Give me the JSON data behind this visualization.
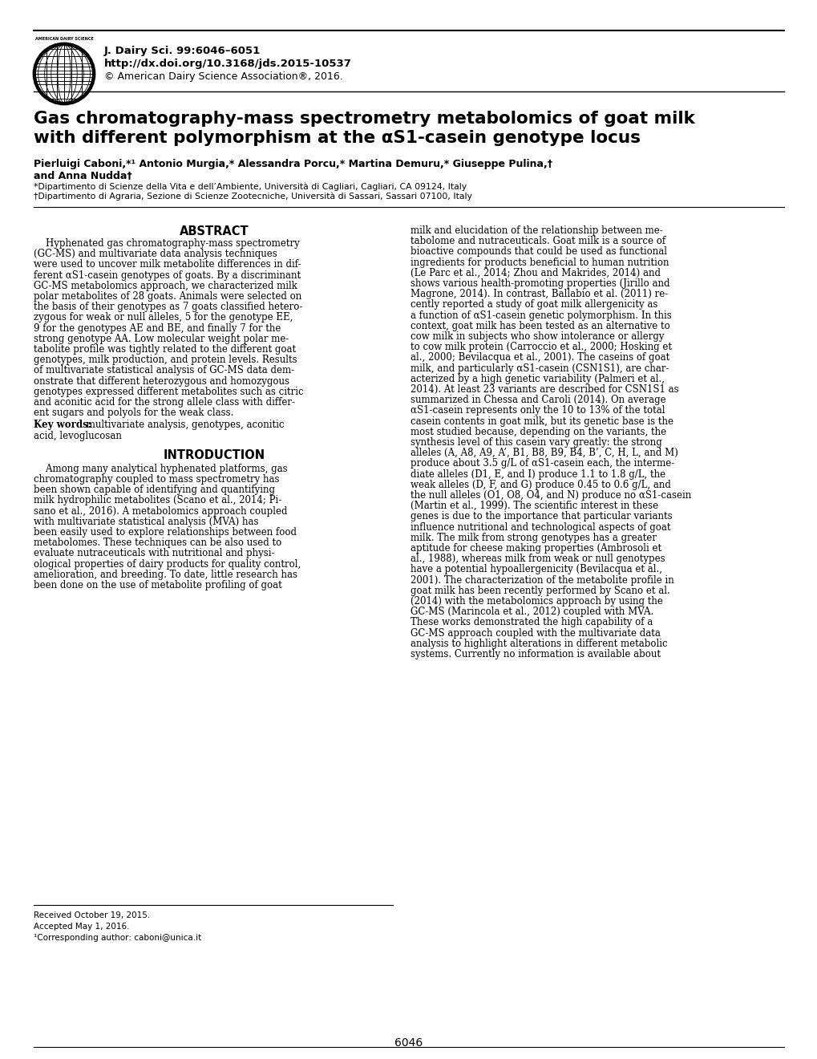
{
  "background_color": "#ffffff",
  "header_journal": "J. Dairy Sci. 99:6046–6051",
  "header_doi": "http://dx.doi.org/10.3168/jds.2015-10537",
  "header_copyright": "© American Dairy Science Association®, 2016.",
  "title_line1": "Gas chromatography-mass spectrometry metabolomics of goat milk",
  "title_line2_part1": "with different polymorphism at the α",
  "title_line2_sub": "S1",
  "title_line2_part2": "-casein genotype locus",
  "authors_line1": "Pierluigi Caboni,*¹ Antonio Murgia,* Alessandra Porcu,* Martina Demuru,* Giuseppe Pulina,†",
  "authors_line2": "and Anna Nudda†",
  "affil1": "*Dipartimento di Scienze della Vita e dell’Ambiente, Università di Cagliari, Cagliari, CA 09124, Italy",
  "affil2": "†Dipartimento di Agraria, Sezione di Scienze Zootecniche, Università di Sassari, Sassari 07100, Italy",
  "abstract_title": "ABSTRACT",
  "intro_title": "INTRODUCTION",
  "footer_received": "Received October 19, 2015.",
  "footer_accepted": "Accepted May 1, 2016.",
  "footer_contact": "¹Corresponding author: caboni@unica.it",
  "page_number": "6046",
  "left_col_lines": [
    "    Hyphenated gas chromatography-mass spectrometry",
    "(GC-MS) and multivariate data analysis techniques",
    "were used to uncover milk metabolite differences in dif-",
    "ferent αS1-casein genotypes of goats. By a discriminant",
    "GC-MS metabolomics approach, we characterized milk",
    "polar metabolites of 28 goats. Animals were selected on",
    "the basis of their genotypes as 7 goats classified hetero-",
    "zygous for weak or null alleles, 5 for the genotype EE,",
    "9 for the genotypes AE and BE, and finally 7 for the",
    "strong genotype AA. Low molecular weight polar me-",
    "tabolite profile was tightly related to the different goat",
    "genotypes, milk production, and protein levels. Results",
    "of multivariate statistical analysis of GC-MS data dem-",
    "onstrate that different heterozygous and homozygous",
    "genotypes expressed different metabolites such as citric",
    "and aconitic acid for the strong allele class with differ-",
    "ent sugars and polyols for the weak class."
  ],
  "keywords_bold": "Key words:",
  "keywords_rest": " multivariate analysis, genotypes, aconitic",
  "keywords_line2": "acid, levoglucosan",
  "intro_lines": [
    "    Among many analytical hyphenated platforms, gas",
    "chromatography coupled to mass spectrometry has",
    "been shown capable of identifying and quantifying",
    "milk hydrophilic metabolites (Scano et al., 2014; Pi-",
    "sano et al., 2016). A metabolomics approach coupled",
    "with multivariate statistical analysis (MVA) has",
    "been easily used to explore relationships between food",
    "metabolomes. These techniques can be also used to",
    "evaluate nutraceuticals with nutritional and physi-",
    "ological properties of dairy products for quality control,",
    "amelioration, and breeding. To date, little research has",
    "been done on the use of metabolite profiling of goat"
  ],
  "right_col_lines": [
    "milk and elucidation of the relationship between me-",
    "tabolome and nutraceuticals. Goat milk is a source of",
    "bioactive compounds that could be used as functional",
    "ingredients for products beneficial to human nutrition",
    "(Le Parc et al., 2014; Zhou and Makrides, 2014) and",
    "shows various health-promoting properties (Jirillo and",
    "Magrone, 2014). In contrast, Ballabio et al. (2011) re-",
    "cently reported a study of goat milk allergenicity as",
    "a function of αS1-casein genetic polymorphism. In this",
    "context, goat milk has been tested as an alternative to",
    "cow milk in subjects who show intolerance or allergy",
    "to cow milk protein (Carroccio et al., 2000; Hosking et",
    "al., 2000; Bevilacqua et al., 2001). The caseins of goat",
    "milk, and particularly αS1-casein (CSN1S1), are char-",
    "acterized by a high genetic variability (Palmeri et al.,",
    "2014). At least 23 variants are described for CSN1S1 as",
    "summarized in Chessa and Caroli (2014). On average",
    "αS1-casein represents only the 10 to 13% of the total",
    "casein contents in goat milk, but its genetic base is the",
    "most studied because, depending on the variants, the",
    "synthesis level of this casein vary greatly: the strong",
    "alleles (A, A8, A9, A’, B1, B8, B9, B4, B’, C, H, L, and M)",
    "produce about 3.5 g/L of αS1-casein each, the interme-",
    "diate alleles (D1, E, and I) produce 1.1 to 1.8 g/L, the",
    "weak alleles (D, F, and G) produce 0.45 to 0.6 g/L, and",
    "the null alleles (O1, O8, O4, and N) produce no αS1-casein",
    "(Martin et al., 1999). The scientific interest in these",
    "genes is due to the importance that particular variants",
    "influence nutritional and technological aspects of goat",
    "milk. The milk from strong genotypes has a greater",
    "aptitude for cheese making properties (Ambrosoli et",
    "al., 1988), whereas milk from weak or null genotypes",
    "have a potential hypoallergenicity (Bevilacqua et al.,",
    "2001). The characterization of the metabolite profile in",
    "goat milk has been recently performed by Scano et al.",
    "(2014) with the metabolomics approach by using the",
    "GC-MS (Marincola et al., 2012) coupled with MVA.",
    "These works demonstrated the high capability of a",
    "GC-MS approach coupled with the multivariate data",
    "analysis to highlight alterations in different metabolic",
    "systems. Currently no information is available about"
  ]
}
